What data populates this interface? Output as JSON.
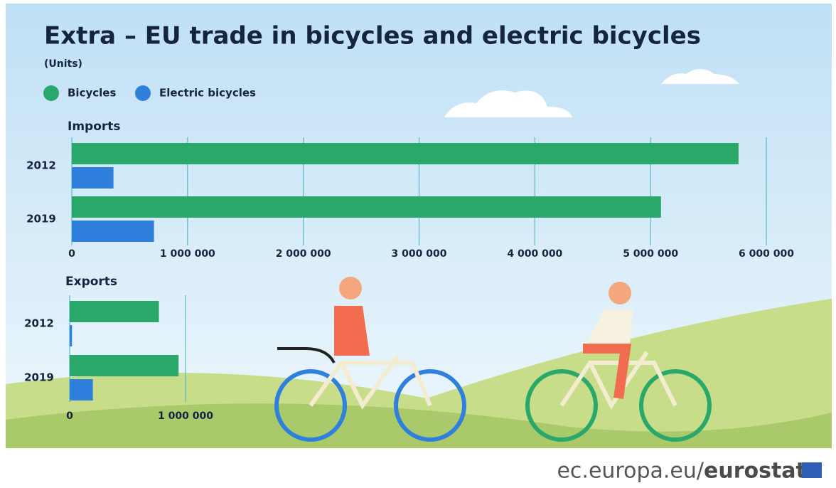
{
  "title": "Extra – EU trade in bicycles and electric bicycles",
  "subtitle": "(Units)",
  "footer": {
    "domain": "ec.europa.eu/",
    "brand": "eurostat"
  },
  "chart_data": [
    {
      "type": "bar",
      "orientation": "horizontal",
      "title": "Imports",
      "categories": [
        "2012",
        "2019"
      ],
      "series": [
        {
          "name": "Bicycles",
          "color": "#2aa86a",
          "values": [
            5760000,
            5090000
          ]
        },
        {
          "name": "Electric bicycles",
          "color": "#2f7fdc",
          "values": [
            360000,
            710000
          ]
        }
      ],
      "xlim": [
        0,
        6000000
      ],
      "xticks": [
        0,
        {
          "value": 1000000,
          "label": "1 000 000"
        },
        {
          "value": 2000000,
          "label": "2 000 000"
        },
        {
          "value": 3000000,
          "label": "3 000 000"
        },
        {
          "value": 4000000,
          "label": "4 000 000"
        },
        {
          "value": 5000000,
          "label": "5 000 000"
        },
        {
          "value": 6000000,
          "label": "6 000 000"
        }
      ],
      "grid": true
    },
    {
      "type": "bar",
      "orientation": "horizontal",
      "title": "Exports",
      "categories": [
        "2012",
        "2019"
      ],
      "series": [
        {
          "name": "Bicycles",
          "color": "#2aa86a",
          "values": [
            770000,
            940000
          ]
        },
        {
          "name": "Electric bicycles",
          "color": "#2f7fdc",
          "values": [
            20000,
            200000
          ]
        }
      ],
      "xlim": [
        0,
        1000000
      ],
      "xticks": [
        0,
        {
          "value": 1000000,
          "label": "1 000 000"
        }
      ],
      "grid": true
    }
  ]
}
